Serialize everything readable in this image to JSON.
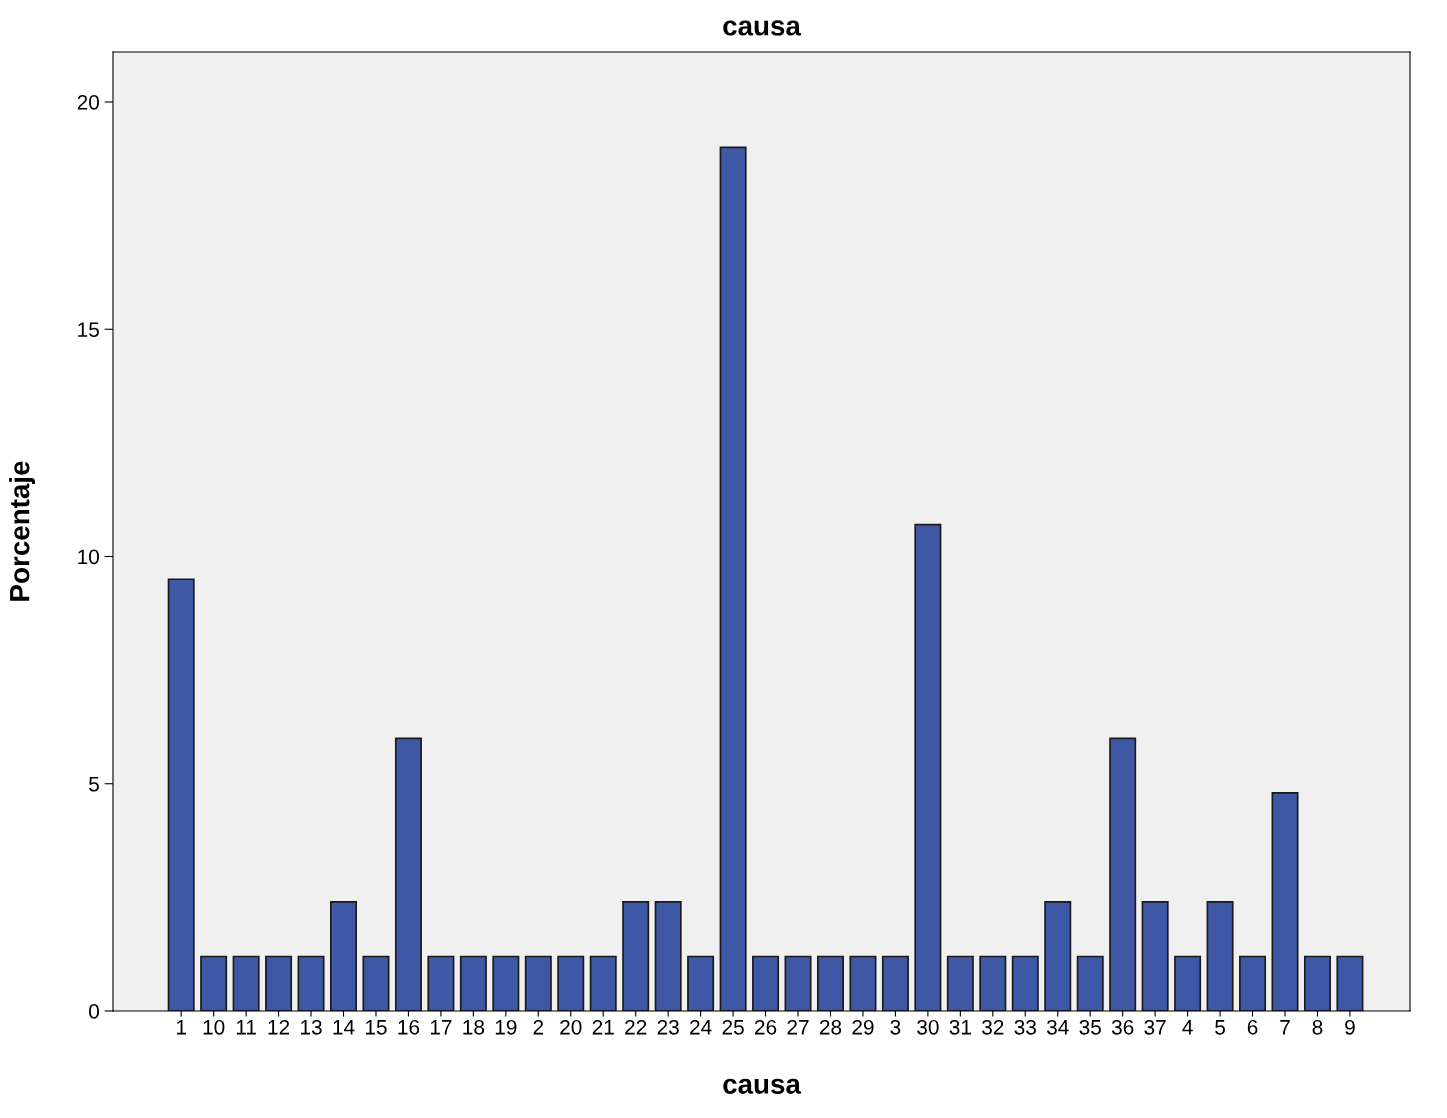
{
  "chart_data": {
    "type": "bar",
    "title": "causa",
    "xlabel": "causa",
    "ylabel": "Porcentaje",
    "categories": [
      "1",
      "10",
      "11",
      "12",
      "13",
      "14",
      "15",
      "16",
      "17",
      "18",
      "19",
      "2",
      "20",
      "21",
      "22",
      "23",
      "24",
      "25",
      "26",
      "27",
      "28",
      "29",
      "3",
      "30",
      "31",
      "32",
      "33",
      "34",
      "35",
      "36",
      "37",
      "4",
      "5",
      "6",
      "7",
      "8",
      "9"
    ],
    "values": [
      9.5,
      1.2,
      1.2,
      1.2,
      1.2,
      2.4,
      1.2,
      6.0,
      1.2,
      1.2,
      1.2,
      1.2,
      1.2,
      1.2,
      2.4,
      2.4,
      1.2,
      19.0,
      1.2,
      1.2,
      1.2,
      1.2,
      1.2,
      10.7,
      1.2,
      1.2,
      1.2,
      2.4,
      1.2,
      6.0,
      2.4,
      1.2,
      2.4,
      1.2,
      4.8,
      1.2,
      1.2
    ],
    "color": "#3f58a6",
    "ylim": [
      0,
      21.1
    ],
    "yticks": [
      0,
      5,
      10,
      15,
      20
    ],
    "grid": false,
    "legend": false
  }
}
